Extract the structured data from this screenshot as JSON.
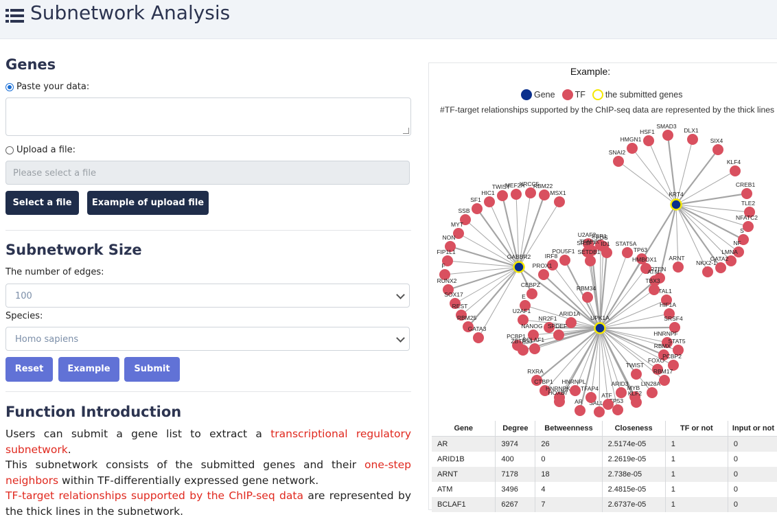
{
  "header": {
    "title": "Subnetwork Analysis"
  },
  "genes": {
    "heading": "Genes",
    "paste_label": "Paste your data:",
    "upload_label": "Upload a file:",
    "file_placeholder": "Please select a file",
    "select_file_button": "Select a file",
    "example_upload_button": "Example of upload file"
  },
  "size": {
    "heading": "Subnetwork Size",
    "edges_label": "The number of edges:",
    "edges_value": "100",
    "species_label": "Species:",
    "species_value": "Homo sapiens"
  },
  "actions": {
    "reset": "Reset",
    "example": "Example",
    "submit": "Submit"
  },
  "intro": {
    "heading": "Function Introduction",
    "p1a": "Users can submit a gene list to extract a ",
    "p1b": "transcriptional regulatory subnetwork",
    "p1c": ".",
    "p2a": "This subnetwork consists of the submitted genes and their ",
    "p2b": "one-step neighbors",
    "p2c": " within TF-differentially expressed gene network.",
    "p3a": "TF-target relationships supported by the ChIP-seq data",
    "p3b": " are represented by the thick lines in the subnetwork."
  },
  "example": {
    "title": "Example:",
    "legend": {
      "gene": "Gene",
      "tf": "TF",
      "submitted": "the submitted genes"
    },
    "note": "#TF-target relationships supported by the ChIP-seq data are represented by the thick lines",
    "colors": {
      "gene": "#0a2f8c",
      "tf": "#d9505f",
      "submitted": "#f5e800"
    },
    "hubs": [
      "GABBR2",
      "UPK1A",
      "KRT4"
    ],
    "node_labels": [
      "TWIST",
      "MEF2A",
      "XRCC5",
      "RBM22",
      "MSX1",
      "HIC1",
      "SF1",
      "SSB",
      "MYT",
      "NON",
      "FIP1L1",
      "F",
      "RUNX2",
      "SOX17",
      "REST",
      "RBM25",
      "GATA3",
      "HSF1",
      "SMAD3",
      "DLX1",
      "HMGN1",
      "SIX4",
      "SNAI2",
      "KLF4",
      "CREB1",
      "TLE2",
      "NFATC2",
      "S",
      "NF",
      "LMNA",
      "GATA2",
      "NKX2-1",
      "ARNT",
      "PTEN",
      "U2AF2",
      "ESR1",
      "TFAP2C",
      "FOS",
      "SRSF7",
      "ID1",
      "STAT5A",
      "TP63",
      "POU5F1",
      "IRF8",
      "HMBOX1",
      "PROX1",
      "SETDB1",
      "RBM34",
      "CEBPZ",
      "E",
      "ARID1A",
      "NR2F1",
      "U2AF1",
      "NANOG",
      "SPDEF",
      "PCBP1",
      "BCLAF1",
      "ATM",
      "TAL1",
      "HIF1A",
      "SRSF4",
      "HNRNPF",
      "STAT5",
      "RBMX",
      "PCBP2",
      "FOXO",
      "RXRA",
      "CTBP1",
      "HNRNPK",
      "AR",
      "SALL4",
      "TP53",
      "MYB",
      "LIN28A",
      "RBM17",
      "KLF2",
      "ARID3",
      "HNRNPL",
      "HOXB7",
      "ATF",
      "TFAP4",
      "ZBTB33",
      "TBX3"
    ]
  },
  "table": {
    "headers": [
      "Gene",
      "Degree",
      "Betweenness",
      "Closeness",
      "TF or not",
      "Input or not"
    ],
    "rows": [
      [
        "AR",
        "3974",
        "26",
        "2.5174e-05",
        "1",
        "0"
      ],
      [
        "ARID1B",
        "400",
        "0",
        "2.2619e-05",
        "1",
        "0"
      ],
      [
        "ARNT",
        "7178",
        "18",
        "2.738e-05",
        "1",
        "0"
      ],
      [
        "ATM",
        "3496",
        "4",
        "2.4815e-05",
        "1",
        "0"
      ],
      [
        "BCLAF1",
        "6267",
        "7",
        "2.6737e-05",
        "1",
        "0"
      ]
    ]
  }
}
